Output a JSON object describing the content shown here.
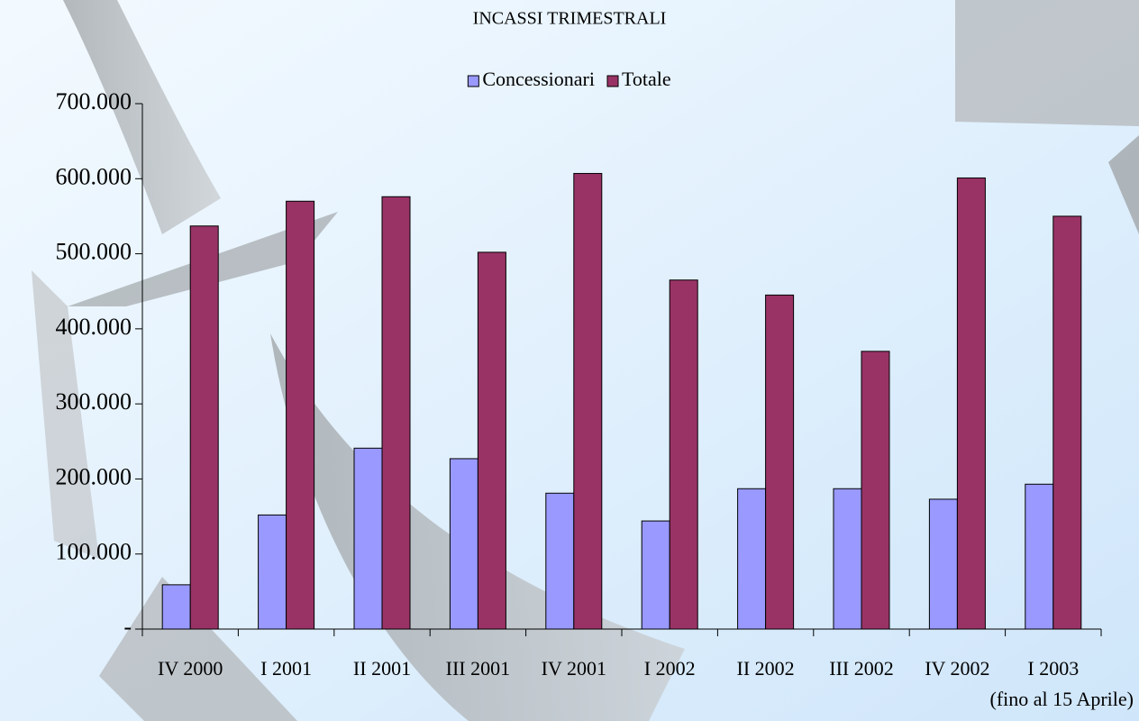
{
  "chart_data": {
    "type": "bar",
    "title": "INCASSI TRIMESTRALI",
    "categories": [
      "IV 2000",
      "I 2001",
      "II 2001",
      "III 2001",
      "IV 2001",
      "I 2002",
      "II 2002",
      "III 2002",
      "IV 2002",
      "I 2003"
    ],
    "category_note": "(fino al 15 Aprile)",
    "series": [
      {
        "name": "Concessionari",
        "color": "#9999ff",
        "values": [
          59000,
          152000,
          241000,
          227000,
          181000,
          144000,
          187000,
          187000,
          173000,
          193000
        ]
      },
      {
        "name": "Totale",
        "color": "#993366",
        "values": [
          537000,
          570000,
          576000,
          502000,
          607000,
          465000,
          445000,
          370000,
          601000,
          550000
        ]
      }
    ],
    "ylim": [
      0,
      700000
    ],
    "yticks": [
      {
        "value": 0,
        "label": "-"
      },
      {
        "value": 100000,
        "label": "100.000"
      },
      {
        "value": 200000,
        "label": "200.000"
      },
      {
        "value": 300000,
        "label": "300.000"
      },
      {
        "value": 400000,
        "label": "400.000"
      },
      {
        "value": 500000,
        "label": "500.000"
      },
      {
        "value": 600000,
        "label": "600.000"
      },
      {
        "value": 700000,
        "label": "700.000"
      }
    ],
    "legend": "top"
  }
}
